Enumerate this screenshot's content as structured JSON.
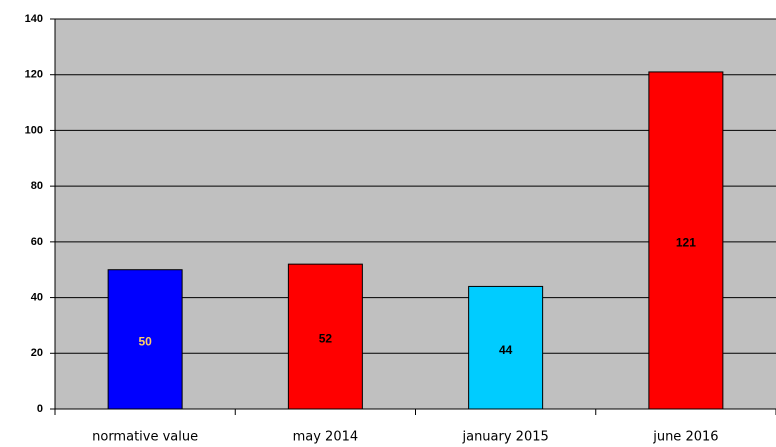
{
  "chart_data": {
    "type": "bar",
    "categories": [
      "normative value",
      "may 2014",
      "january 2015",
      "june 2016"
    ],
    "values": [
      50,
      52,
      44,
      121
    ],
    "colors": [
      "#0000ff",
      "#ff0000",
      "#00ccff",
      "#ff0000"
    ],
    "label_colors": [
      "#ffcc66",
      "#000000",
      "#000000",
      "#000000"
    ],
    "ylim": [
      0,
      140
    ],
    "yticks": [
      0,
      20,
      40,
      60,
      80,
      100,
      120,
      140
    ],
    "grid": true,
    "plot_background": "#c0c0c0"
  }
}
